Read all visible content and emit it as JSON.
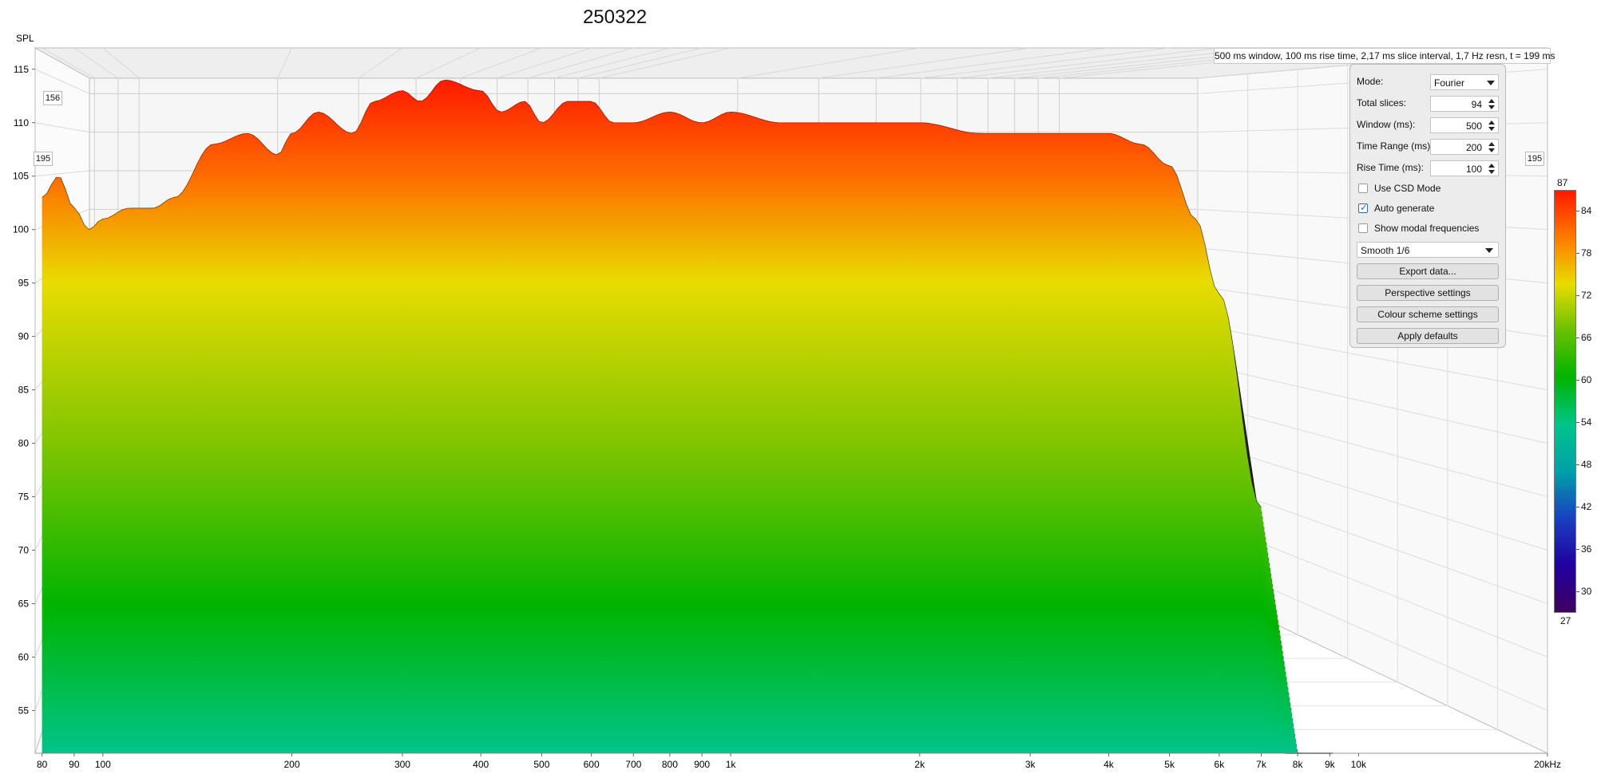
{
  "title": "250322",
  "info_text": "500 ms window, 100 ms rise time, 2,17 ms slice interval, 1,7 Hz resn, t = 199 ms",
  "corner_labels": {
    "left_top": "156",
    "left": "195",
    "right": "195"
  },
  "controls": {
    "mode_label": "Mode:",
    "mode_value": "Fourier",
    "total_slices_label": "Total slices:",
    "total_slices_value": "94",
    "window_label": "Window (ms):",
    "window_value": "500",
    "time_range_label": "Time Range (ms):",
    "time_range_value": "200",
    "rise_time_label": "Rise Time (ms):",
    "rise_time_value": "100",
    "use_csd_label": "Use CSD Mode",
    "use_csd_checked": false,
    "auto_generate_label": "Auto generate",
    "auto_generate_checked": true,
    "show_modal_label": "Show modal frequencies",
    "show_modal_checked": false,
    "smoothing_value": "Smooth 1/6",
    "export_label": "Export data...",
    "perspective_label": "Perspective settings",
    "colour_scheme_label": "Colour scheme settings",
    "defaults_label": "Apply defaults"
  },
  "colorbar": {
    "top_label": "87",
    "bottom_label": "27",
    "ticks": [
      "84",
      "78",
      "72",
      "66",
      "60",
      "54",
      "48",
      "42",
      "36",
      "30"
    ],
    "stops": [
      "#ff1a00",
      "#ff7a00",
      "#e8dc00",
      "#66c000",
      "#00b400",
      "#00c48a",
      "#00a0a8",
      "#1a40c0",
      "#2000a0",
      "#400060"
    ]
  },
  "chart_data": {
    "type": "area",
    "subtype": "waterfall / cumulative spectral decay",
    "ylabel": "SPL",
    "ylim": [
      51,
      117
    ],
    "y_ticks": [
      55,
      60,
      65,
      70,
      75,
      80,
      85,
      90,
      95,
      100,
      105,
      110,
      115
    ],
    "x_scale": "log",
    "xlim": [
      78,
      20000
    ],
    "x_ticks": [
      {
        "value": 80,
        "label": "80"
      },
      {
        "value": 90,
        "label": "90"
      },
      {
        "value": 100,
        "label": "100"
      },
      {
        "value": 200,
        "label": "200"
      },
      {
        "value": 300,
        "label": "300"
      },
      {
        "value": 400,
        "label": "400"
      },
      {
        "value": 500,
        "label": "500"
      },
      {
        "value": 600,
        "label": "600"
      },
      {
        "value": 700,
        "label": "700"
      },
      {
        "value": 800,
        "label": "800"
      },
      {
        "value": 900,
        "label": "900"
      },
      {
        "value": 1000,
        "label": "1k"
      },
      {
        "value": 2000,
        "label": "2k"
      },
      {
        "value": 3000,
        "label": "3k"
      },
      {
        "value": 4000,
        "label": "4k"
      },
      {
        "value": 5000,
        "label": "5k"
      },
      {
        "value": 6000,
        "label": "6k"
      },
      {
        "value": 7000,
        "label": "7k"
      },
      {
        "value": 8000,
        "label": "8k"
      },
      {
        "value": 9000,
        "label": "9k"
      },
      {
        "value": 10000,
        "label": "10k"
      },
      {
        "value": 20000,
        "label": "20kHz"
      }
    ],
    "grid": true,
    "total_slices": 94,
    "front_slice": {
      "freq": [
        80,
        85,
        90,
        95,
        100,
        110,
        120,
        130,
        150,
        170,
        190,
        200,
        220,
        250,
        270,
        300,
        320,
        350,
        400,
        430,
        470,
        500,
        550,
        600,
        650,
        700,
        800,
        900,
        1000,
        1200,
        1500,
        2000,
        2500,
        3000,
        3500,
        4000,
        4500,
        5000,
        5500,
        6000,
        7000
      ],
      "spl": [
        103,
        105,
        102,
        100,
        101,
        102,
        102,
        103,
        108,
        109,
        107,
        109,
        111,
        109,
        112,
        113,
        112,
        114,
        113,
        111,
        112,
        110,
        112,
        112,
        110,
        110,
        111,
        110,
        111,
        110,
        110,
        110,
        109,
        109,
        109,
        109,
        108,
        106,
        101,
        94,
        74
      ]
    }
  }
}
